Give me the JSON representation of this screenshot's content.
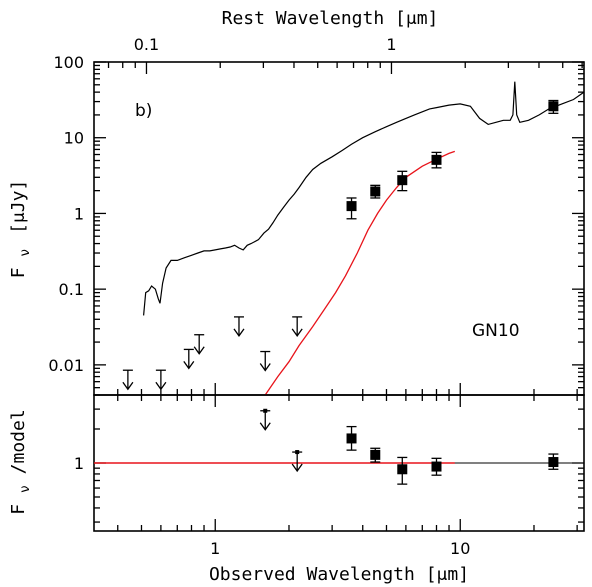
{
  "chart_data": [
    {
      "type": "scatter",
      "panel": "top",
      "title": "",
      "panel_label": "b)",
      "annotation": "GN10",
      "xlabel": "Observed Wavelength [μm]",
      "top_xlabel": "Rest Wavelength [μm]",
      "ylabel": "F_ν [μJy]",
      "ylabel_main": "F",
      "ylabel_sub": "ν",
      "ylabel_unit": "[μJy]",
      "xscale": "log",
      "yscale": "log",
      "xlim": [
        0.32,
        32
      ],
      "ylim": [
        0.004,
        100
      ],
      "x_ticks": [
        {
          "value": 1,
          "label": "1"
        },
        {
          "value": 10,
          "label": "10"
        }
      ],
      "y_ticks": [
        {
          "value": 0.01,
          "label": "0.01"
        },
        {
          "value": 0.1,
          "label": "0.1"
        },
        {
          "value": 1,
          "label": "1"
        },
        {
          "value": 10,
          "label": "10"
        },
        {
          "value": 100,
          "label": "100"
        }
      ],
      "top_x_ticks": [
        {
          "rest": 0.1,
          "label": "0.1"
        },
        {
          "rest": 1,
          "label": "1"
        }
      ],
      "redshift_factor": 5.24,
      "detections": [
        {
          "x": 3.6,
          "y": 1.25,
          "ylo": 0.85,
          "yhi": 1.6
        },
        {
          "x": 4.5,
          "y": 1.95,
          "ylo": 1.6,
          "yhi": 2.35
        },
        {
          "x": 5.8,
          "y": 2.75,
          "ylo": 2.0,
          "yhi": 3.6
        },
        {
          "x": 8.0,
          "y": 5.1,
          "ylo": 4.0,
          "yhi": 6.4
        },
        {
          "x": 24.0,
          "y": 26.0,
          "ylo": 21.0,
          "yhi": 31.0
        }
      ],
      "upper_limits": [
        {
          "x": 0.44,
          "y": 0.0085
        },
        {
          "x": 0.6,
          "y": 0.0085
        },
        {
          "x": 0.78,
          "y": 0.016
        },
        {
          "x": 0.86,
          "y": 0.025
        },
        {
          "x": 1.25,
          "y": 0.043
        },
        {
          "x": 1.6,
          "y": 0.015
        },
        {
          "x": 2.16,
          "y": 0.043
        }
      ],
      "template_sed": [
        [
          0.51,
          0.045
        ],
        [
          0.52,
          0.09
        ],
        [
          0.535,
          0.095
        ],
        [
          0.55,
          0.11
        ],
        [
          0.57,
          0.1
        ],
        [
          0.585,
          0.075
        ],
        [
          0.595,
          0.065
        ],
        [
          0.61,
          0.12
        ],
        [
          0.63,
          0.19
        ],
        [
          0.66,
          0.24
        ],
        [
          0.7,
          0.24
        ],
        [
          0.75,
          0.26
        ],
        [
          0.8,
          0.28
        ],
        [
          0.85,
          0.3
        ],
        [
          0.9,
          0.32
        ],
        [
          0.95,
          0.32
        ],
        [
          1.0,
          0.33
        ],
        [
          1.05,
          0.34
        ],
        [
          1.1,
          0.35
        ],
        [
          1.15,
          0.36
        ],
        [
          1.2,
          0.38
        ],
        [
          1.25,
          0.35
        ],
        [
          1.3,
          0.33
        ],
        [
          1.35,
          0.38
        ],
        [
          1.4,
          0.4
        ],
        [
          1.5,
          0.45
        ],
        [
          1.58,
          0.55
        ],
        [
          1.65,
          0.62
        ],
        [
          1.72,
          0.75
        ],
        [
          1.8,
          0.95
        ],
        [
          1.9,
          1.2
        ],
        [
          2.0,
          1.5
        ],
        [
          2.1,
          1.8
        ],
        [
          2.2,
          2.2
        ],
        [
          2.35,
          3.0
        ],
        [
          2.5,
          3.8
        ],
        [
          2.7,
          4.6
        ],
        [
          3.0,
          5.6
        ],
        [
          3.3,
          6.8
        ],
        [
          3.6,
          8.2
        ],
        [
          4.0,
          10.0
        ],
        [
          4.5,
          12.0
        ],
        [
          5.0,
          14.0
        ],
        [
          5.5,
          16.0
        ],
        [
          6.0,
          18.0
        ],
        [
          6.5,
          20.0
        ],
        [
          7.0,
          22.0
        ],
        [
          7.5,
          24.0
        ],
        [
          8.0,
          25.0
        ],
        [
          9.0,
          27.0
        ],
        [
          10.0,
          28.0
        ],
        [
          11.0,
          26.0
        ],
        [
          12.0,
          18.0
        ],
        [
          13.0,
          15.0
        ],
        [
          14.0,
          16.0
        ],
        [
          15.0,
          17.0
        ],
        [
          16.0,
          17.0
        ],
        [
          16.4,
          20.0
        ],
        [
          16.7,
          55.0
        ],
        [
          17.0,
          20.0
        ],
        [
          17.5,
          16.0
        ],
        [
          19.0,
          17.0
        ],
        [
          21.0,
          20.0
        ],
        [
          23.0,
          24.0
        ],
        [
          26.0,
          28.0
        ],
        [
          29.0,
          32.0
        ],
        [
          32.0,
          40.0
        ]
      ],
      "model_fit": [
        [
          1.6,
          0.004
        ],
        [
          1.8,
          0.007
        ],
        [
          2.0,
          0.011
        ],
        [
          2.2,
          0.018
        ],
        [
          2.5,
          0.032
        ],
        [
          2.8,
          0.055
        ],
        [
          3.1,
          0.09
        ],
        [
          3.4,
          0.15
        ],
        [
          3.8,
          0.3
        ],
        [
          4.2,
          0.6
        ],
        [
          4.6,
          1.0
        ],
        [
          5.0,
          1.5
        ],
        [
          5.5,
          2.2
        ],
        [
          6.0,
          3.0
        ],
        [
          7.0,
          4.2
        ],
        [
          8.0,
          5.2
        ],
        [
          9.0,
          6.2
        ],
        [
          9.5,
          6.6
        ]
      ]
    },
    {
      "type": "scatter",
      "panel": "bottom",
      "title": "",
      "xlabel": "Observed Wavelength [μm]",
      "ylabel": "F_ν/model",
      "ylabel_main": "F",
      "ylabel_sub": "ν",
      "ylabel_unit": "/model",
      "xscale": "log",
      "yscale": "log",
      "xlim": [
        0.32,
        32
      ],
      "ylim": [
        0.25,
        4.0
      ],
      "y_ticks": [
        {
          "value": 1,
          "label": "1"
        }
      ],
      "reference_line": 1,
      "detections": [
        {
          "x": 3.6,
          "y": 1.65,
          "ylo": 1.3,
          "yhi": 2.1
        },
        {
          "x": 4.5,
          "y": 1.18,
          "ylo": 1.02,
          "yhi": 1.35
        },
        {
          "x": 5.8,
          "y": 0.88,
          "ylo": 0.65,
          "yhi": 1.12
        },
        {
          "x": 8.0,
          "y": 0.93,
          "ylo": 0.78,
          "yhi": 1.1
        },
        {
          "x": 24.0,
          "y": 1.02,
          "ylo": 0.88,
          "yhi": 1.2
        }
      ],
      "upper_limits": [
        {
          "x": 1.6,
          "y": 2.9
        },
        {
          "x": 2.16,
          "y": 1.25
        }
      ]
    }
  ]
}
